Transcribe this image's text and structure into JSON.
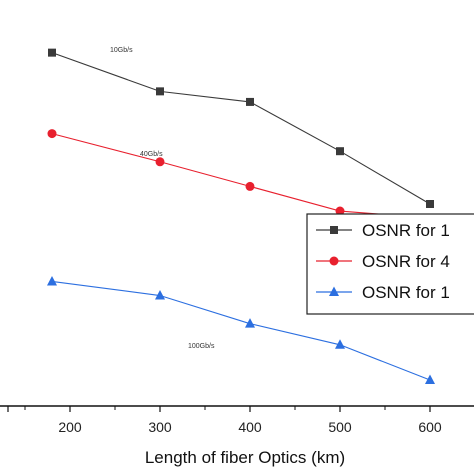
{
  "chart_data": {
    "type": "line",
    "xlabel": "Length of fiber Optics (km)",
    "ylabel": "",
    "x": [
      180,
      300,
      400,
      500,
      600
    ],
    "xticks": [
      "200",
      "300",
      "400",
      "500",
      "600"
    ],
    "xlim": [
      100,
      650
    ],
    "ylim": [
      0,
      100
    ],
    "grid": false,
    "legend_position": "right",
    "series": [
      {
        "name": "OSNR for 1",
        "color": "#3a3a3a",
        "marker": "square",
        "values": [
          93,
          82,
          79,
          65,
          50
        ]
      },
      {
        "name": "OSNR for 4",
        "color": "#e8202e",
        "marker": "circle",
        "values": [
          70,
          62,
          55,
          48,
          46
        ]
      },
      {
        "name": "OSNR for 1",
        "color": "#2c6fe0",
        "marker": "triangle",
        "values": [
          28,
          24,
          16,
          10,
          0
        ]
      }
    ],
    "annotations": [
      {
        "text": "10Gb/s",
        "series": 0
      },
      {
        "text": "40Gb/s",
        "series": 1
      },
      {
        "text": "100Gb/s",
        "series": 2
      }
    ]
  }
}
